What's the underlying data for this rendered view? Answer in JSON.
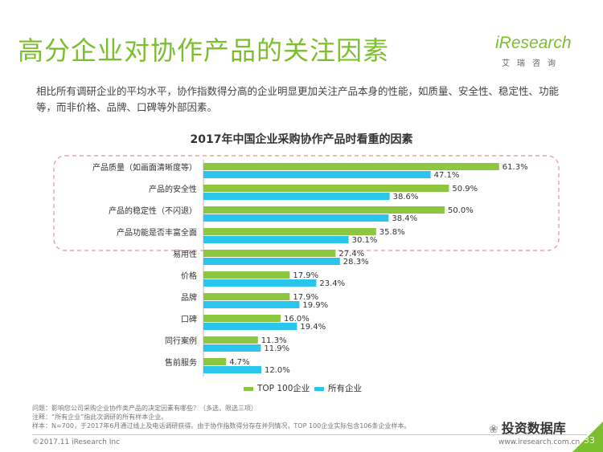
{
  "page": {
    "title": "高分企业对协作产品的关注因素",
    "logo_text": "iResearch",
    "logo_sub": "艾瑞咨询",
    "intro": "相比所有调研企业的平均水平，协作指数得分高的企业明显更加关注产品本身的性能，如质量、安全性、稳定性、功能等，而非价格、品牌、口碑等外部因素。",
    "footer_question": "问题：影响您公司采购企业协作类产品的决定因素有哪些？（多选，限选三项）",
    "footer_note": "注释：“所有企业”指此次调研的所有样本企业。",
    "footer_source": "样本：N=700，于2017年6月通过线上及电话调研获得。由于协作指数得分存在并列情况，TOP 100企业实际包含106条企业样本。",
    "copyright": "©2017.11 iResearch Inc",
    "website": "www.iresearch.com.cn",
    "page_number": "33",
    "wechat_label": "投资数据库"
  },
  "colors": {
    "top100": "#8dc63f",
    "all": "#29c5ec",
    "title": "#7cbf2e",
    "highlight_box": "#e8909c"
  },
  "chart_data": {
    "type": "bar",
    "orientation": "horizontal",
    "title": "2017年中国企业采购协作产品时看重的因素",
    "categories": [
      "产品质量（如画面清晰度等）",
      "产品的安全性",
      "产品的稳定性（不闪退）",
      "产品功能是否丰富全面",
      "易用性",
      "价格",
      "品牌",
      "口碑",
      "同行案例",
      "售前服务"
    ],
    "series": [
      {
        "name": "TOP 100企业",
        "values": [
          61.3,
          50.9,
          50.0,
          35.8,
          27.4,
          17.9,
          17.9,
          16.0,
          11.3,
          4.7
        ]
      },
      {
        "name": "所有企业",
        "values": [
          47.1,
          38.6,
          38.4,
          30.1,
          28.3,
          23.4,
          19.9,
          19.4,
          11.9,
          12.0
        ]
      }
    ],
    "value_suffix": "%",
    "xlim": [
      0,
      70
    ],
    "highlighted_categories": 4,
    "legend_position": "bottom"
  }
}
